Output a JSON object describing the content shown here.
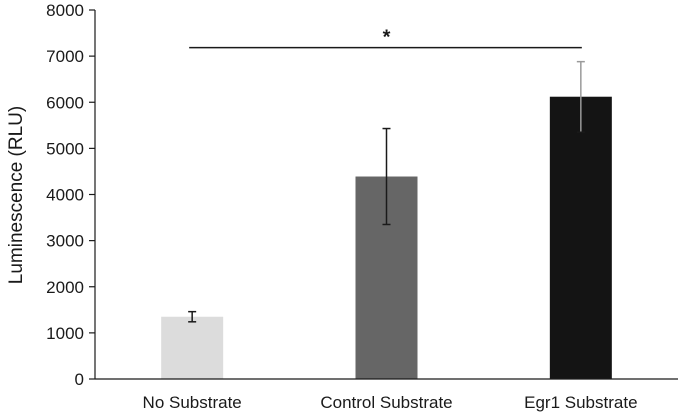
{
  "chart_data": {
    "type": "bar",
    "title": "",
    "xlabel": "",
    "ylabel": "Luminescence (RLU)",
    "ylim": [
      0,
      8000
    ],
    "yticks": [
      0,
      1000,
      2000,
      3000,
      4000,
      5000,
      6000,
      7000,
      8000
    ],
    "grid": false,
    "legend": "none",
    "categories": [
      "No Substrate",
      "Control Substrate",
      "Egr1 Substrate"
    ],
    "values": [
      1350,
      4390,
      6120
    ],
    "error_low": [
      1240,
      3350,
      5350
    ],
    "error_high": [
      1460,
      5430,
      6880
    ],
    "colors": [
      "#dcdcdc",
      "#666666",
      "#141414"
    ],
    "significance": {
      "from_category": 0,
      "to_category": 2,
      "y": 7400,
      "label": "*"
    }
  }
}
